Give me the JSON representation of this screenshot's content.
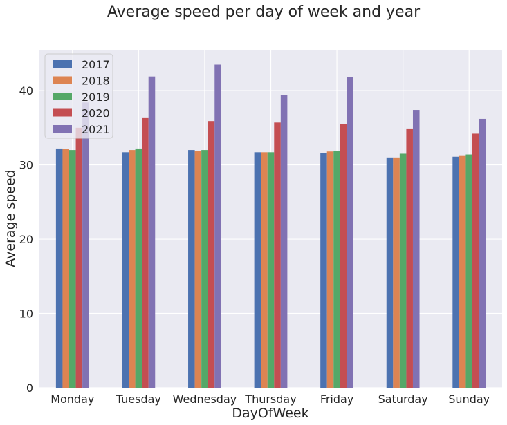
{
  "chart_data": {
    "type": "bar",
    "title": "Average speed per day of week and year",
    "xlabel": "DayOfWeek",
    "ylabel": "Average speed",
    "categories": [
      "Monday",
      "Tuesday",
      "Wednesday",
      "Thursday",
      "Friday",
      "Saturday",
      "Sunday"
    ],
    "series": [
      {
        "name": "2017",
        "color": "#4c72b0",
        "values": [
          32.2,
          31.7,
          32.0,
          31.7,
          31.6,
          31.0,
          31.1
        ]
      },
      {
        "name": "2018",
        "color": "#dd8452",
        "values": [
          32.1,
          32.0,
          31.9,
          31.7,
          31.8,
          31.0,
          31.2
        ]
      },
      {
        "name": "2019",
        "color": "#55a868",
        "values": [
          32.0,
          32.2,
          32.0,
          31.7,
          31.9,
          31.5,
          31.4
        ]
      },
      {
        "name": "2020",
        "color": "#c44e52",
        "values": [
          35.0,
          36.3,
          35.9,
          35.7,
          35.5,
          34.9,
          34.2
        ]
      },
      {
        "name": "2021",
        "color": "#8172b3",
        "values": [
          38.4,
          41.9,
          43.5,
          39.4,
          41.8,
          37.4,
          36.2
        ]
      }
    ],
    "ylim": [
      0,
      45.5
    ],
    "yticks": [
      0,
      10,
      20,
      30,
      40
    ],
    "grid": true,
    "legend_position": "top-left",
    "background_color": "#eaeaf2",
    "grid_color": "#ffffff"
  }
}
